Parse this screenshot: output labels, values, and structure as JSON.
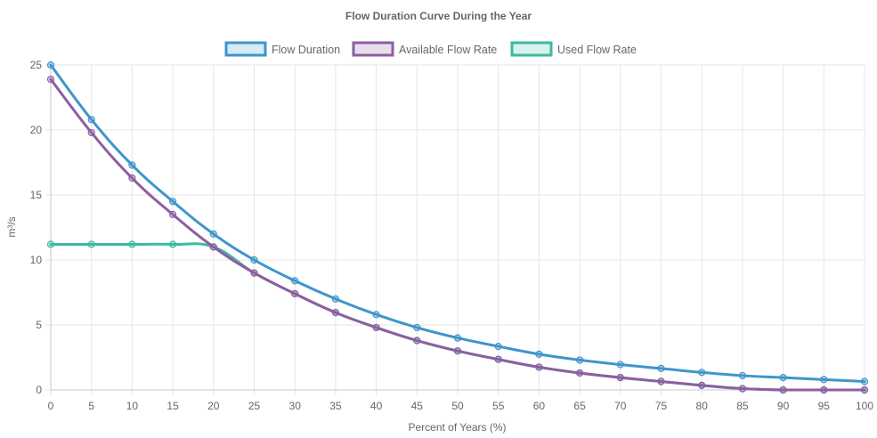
{
  "chart_data": {
    "type": "line",
    "title": "Flow Duration Curve During the Year",
    "xlabel": "Percent of Years (%)",
    "ylabel": "m³/s",
    "x": [
      0,
      5,
      10,
      15,
      20,
      25,
      30,
      35,
      40,
      45,
      50,
      55,
      60,
      65,
      70,
      75,
      80,
      85,
      90,
      95,
      100
    ],
    "xlim": [
      0,
      100
    ],
    "ylim": [
      0,
      25
    ],
    "yticks": [
      0,
      5,
      10,
      15,
      20,
      25
    ],
    "grid": true,
    "legend_position": "top",
    "series": [
      {
        "name": "Flow Duration",
        "color": "#3e95cd",
        "values": [
          25,
          20.8,
          17.3,
          14.5,
          12.0,
          10.0,
          8.4,
          7.0,
          5.8,
          4.8,
          4.0,
          3.35,
          2.75,
          2.3,
          1.95,
          1.65,
          1.35,
          1.1,
          0.95,
          0.8,
          0.65
        ]
      },
      {
        "name": "Available Flow Rate",
        "color": "#8e5ea2",
        "values": [
          23.9,
          19.8,
          16.3,
          13.5,
          11.0,
          9.0,
          7.4,
          5.95,
          4.8,
          3.8,
          3.0,
          2.35,
          1.75,
          1.3,
          0.95,
          0.65,
          0.35,
          0.1,
          0,
          0,
          0
        ]
      },
      {
        "name": "Used Flow Rate",
        "color": "#3cba9f",
        "values": [
          11.2,
          11.2,
          11.2,
          11.2,
          11.0,
          9.0,
          7.4,
          5.95,
          4.8,
          3.8,
          3.0,
          2.35,
          1.75,
          1.3,
          0.95,
          0.65,
          0.35,
          0.1,
          0,
          0,
          0
        ]
      }
    ]
  }
}
